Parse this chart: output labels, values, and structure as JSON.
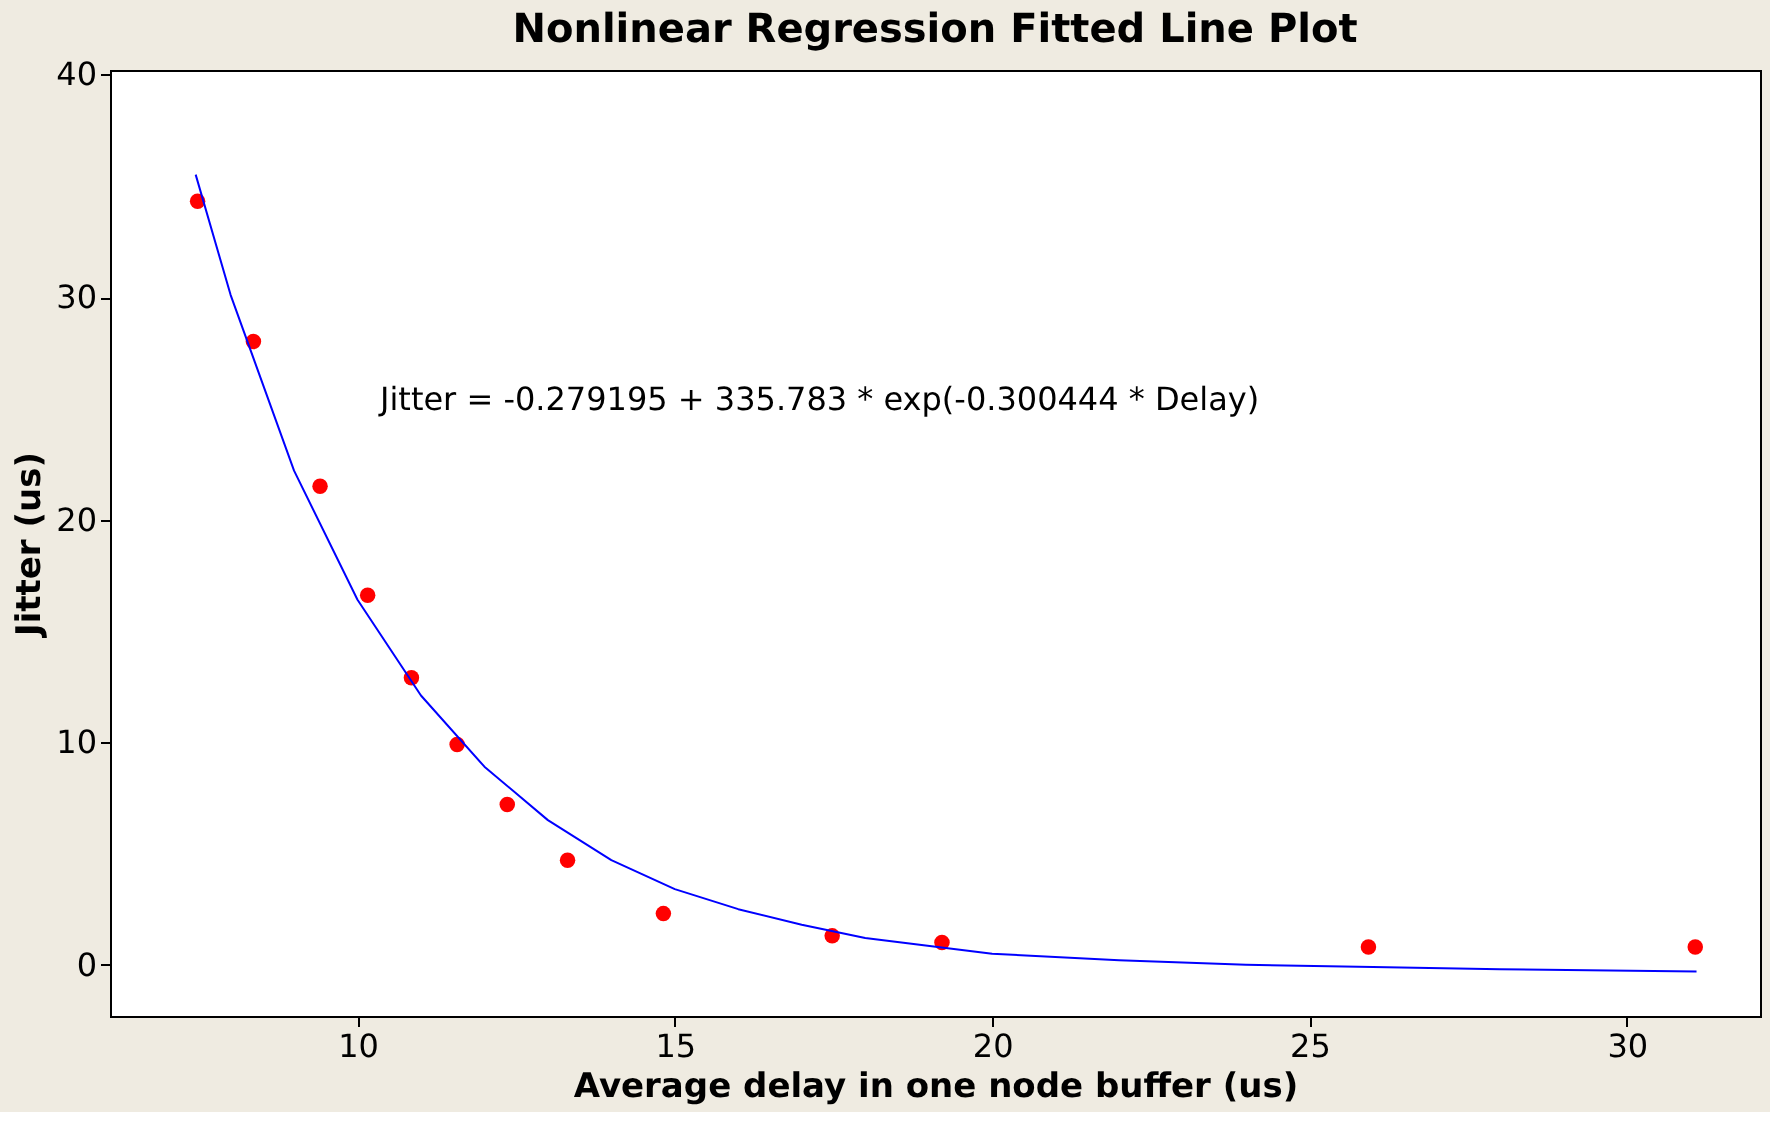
{
  "chart_data": {
    "type": "scatter",
    "title": "Nonlinear Regression Fitted Line Plot",
    "xlabel": "Average delay in one node buffer (us)",
    "ylabel": "Jitter (us)",
    "annotations": [
      "Jitter = -0.279195 + 335.783 * exp(-0.300444 * Delay)"
    ],
    "xlim": [
      6.1,
      32.1
    ],
    "ylim": [
      -2.3,
      40.2
    ],
    "xticks": [
      10,
      15,
      20,
      25,
      30
    ],
    "yticks": [
      0,
      10,
      20,
      30,
      40
    ],
    "grid": false,
    "series": [
      {
        "color": "#ff0000",
        "marker": "circle",
        "x": [
          7.48,
          8.36,
          9.41,
          10.16,
          10.85,
          11.57,
          12.36,
          13.31,
          14.82,
          17.48,
          19.21,
          25.93,
          31.08
        ],
        "values": [
          34.3,
          28.0,
          21.5,
          16.6,
          12.9,
          9.9,
          7.2,
          4.7,
          2.3,
          1.3,
          1.0,
          0.8,
          0.8
        ]
      },
      {
        "type": "line",
        "color": "#0000ff",
        "line_style": "solid",
        "marker": "none",
        "x": [
          7.45,
          8,
          9,
          10,
          11,
          12,
          13,
          14,
          15,
          16,
          17,
          18,
          20,
          22,
          24,
          26,
          28,
          31.1
        ],
        "values": [
          35.5,
          30.1,
          22.2,
          16.4,
          12.1,
          8.9,
          6.5,
          4.7,
          3.4,
          2.5,
          1.8,
          1.2,
          0.5,
          0.2,
          0.0,
          -0.1,
          -0.2,
          -0.3
        ]
      }
    ]
  }
}
